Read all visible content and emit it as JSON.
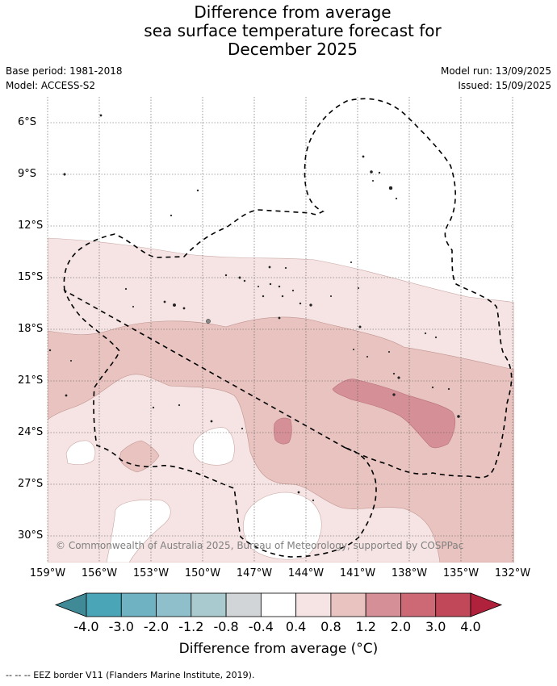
{
  "title_lines": [
    "Difference from average",
    "sea surface temperature forecast for",
    "December 2025"
  ],
  "base_period": "Base period: 1981-2018",
  "model": "Model: ACCESS-S2",
  "model_run": "Model run: 13/09/2025",
  "issued": "Issued: 15/09/2025",
  "copyright": "© Commonwealth of Australia 2025, Bureau of Meteorology, supported by COSPPac",
  "lat_labels": [
    "6°S",
    "9°S",
    "12°S",
    "15°S",
    "18°S",
    "21°S",
    "24°S",
    "27°S",
    "30°S"
  ],
  "lon_labels": [
    "159°W",
    "156°W",
    "153°W",
    "150°W",
    "147°W",
    "144°W",
    "141°W",
    "138°W",
    "135°W",
    "132°W"
  ],
  "colorbar": {
    "ticks": [
      "-4.0",
      "-3.0",
      "-2.0",
      "-1.2",
      "-0.8",
      "-0.4",
      "0.4",
      "0.8",
      "1.2",
      "2.0",
      "3.0",
      "4.0"
    ],
    "colors": [
      "#3f8a96",
      "#4aa5b7",
      "#6fb2c1",
      "#8fbfca",
      "#a9cacf",
      "#d1d5d7",
      "#ffffff",
      "#f5e4e3",
      "#e8c3bf",
      "#d58f97",
      "#cd6875",
      "#c04858",
      "#b0223b"
    ],
    "label": "Difference from average (°C)"
  },
  "footer": "--  --  -- EEZ border V11 (Flanders Marine Institute, 2019).",
  "map_colors": {
    "band_0_4_0_8": "#f5e4e3",
    "band_0_8_1_2": "#e8c3bf",
    "band_1_2_2_0": "#d58f97",
    "neutral": "#ffffff"
  }
}
